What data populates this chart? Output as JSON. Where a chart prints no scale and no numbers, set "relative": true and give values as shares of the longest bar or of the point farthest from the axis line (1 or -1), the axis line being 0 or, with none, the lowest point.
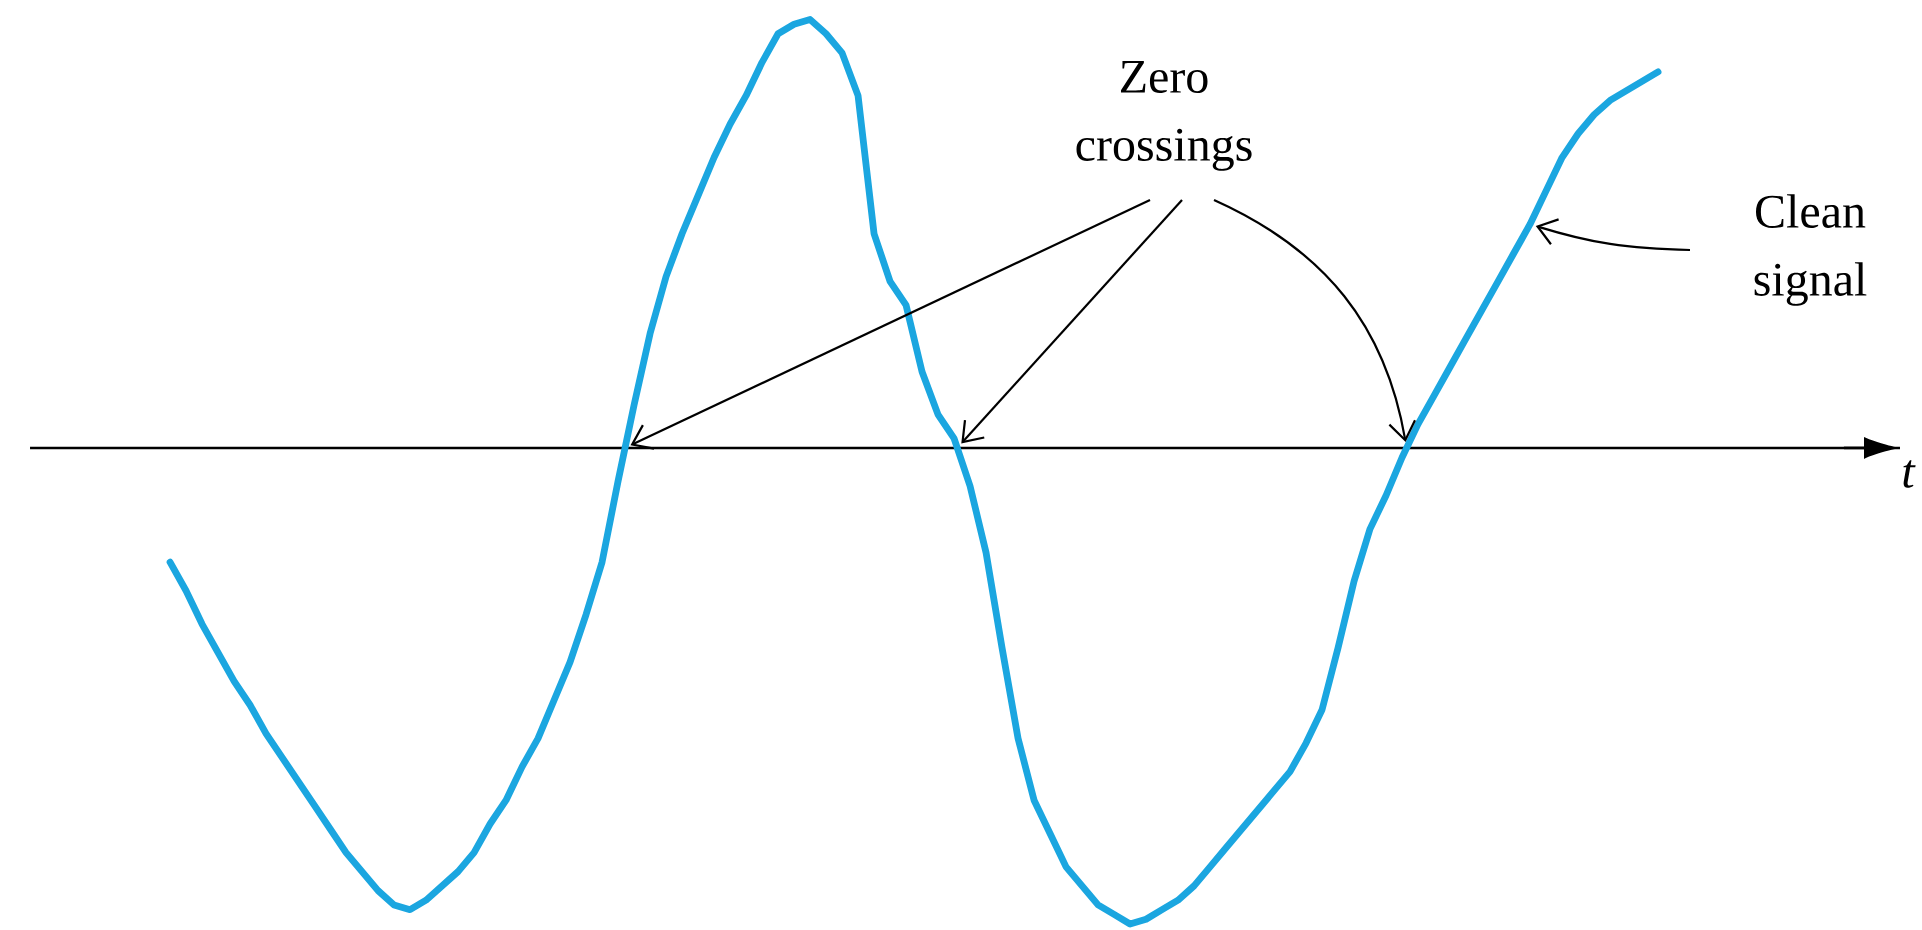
{
  "chart_data": {
    "type": "line",
    "relative": true,
    "xlabel": "t",
    "color": "#1ba6e0",
    "annotations": [
      "Zero crossings",
      "Clean signal"
    ],
    "categories": [
      null,
      null,
      null,
      null,
      null,
      null,
      null,
      null,
      null,
      null,
      null,
      null,
      null,
      null,
      null,
      null,
      null,
      null,
      null,
      null,
      null,
      null,
      null,
      null,
      null,
      null,
      null,
      null,
      null,
      null,
      null,
      null,
      null,
      null,
      null,
      null,
      null,
      null,
      null,
      null,
      null,
      null,
      null,
      null,
      null,
      null,
      null,
      null,
      null,
      null,
      null,
      null,
      null,
      null,
      null,
      null,
      null,
      null,
      null,
      null,
      null,
      null,
      null,
      null,
      null,
      null,
      null,
      null,
      null,
      null,
      null,
      null,
      null,
      null,
      null,
      null,
      null,
      null,
      null,
      null,
      null,
      null,
      null,
      null,
      null,
      null,
      null,
      null,
      null,
      null,
      null,
      null,
      null,
      null
    ],
    "values": [
      -0.24,
      -0.3,
      -0.37,
      -0.43,
      -0.49,
      -0.54,
      -0.6,
      -0.65,
      -0.7,
      -0.75,
      -0.8,
      -0.85,
      -0.89,
      -0.93,
      -0.96,
      -0.97,
      -0.95,
      -0.92,
      -0.89,
      -0.85,
      -0.79,
      -0.74,
      -0.67,
      -0.61,
      -0.53,
      -0.45,
      -0.35,
      -0.24,
      -0.07,
      0.09,
      0.24,
      0.36,
      0.45,
      0.53,
      0.61,
      0.68,
      0.74,
      0.81,
      0.87,
      0.89,
      0.9,
      0.87,
      0.83,
      0.74,
      0.45,
      0.35,
      0.3,
      0.16,
      0.07,
      0.02,
      -0.08,
      -0.22,
      -0.42,
      -0.61,
      -0.74,
      -0.81,
      -0.88,
      -0.92,
      -0.96,
      -0.98,
      -1.0,
      -0.99,
      -0.97,
      -0.95,
      -0.92,
      -0.88,
      -0.84,
      -0.8,
      -0.76,
      -0.72,
      -0.68,
      -0.62,
      -0.55,
      -0.42,
      -0.28,
      -0.17,
      -0.1,
      -0.02,
      0.05,
      0.11,
      0.17,
      0.23,
      0.29,
      0.35,
      0.41,
      0.47,
      0.54,
      0.61,
      0.66,
      0.7,
      0.73,
      0.75,
      0.77,
      0.79
    ]
  }
}
